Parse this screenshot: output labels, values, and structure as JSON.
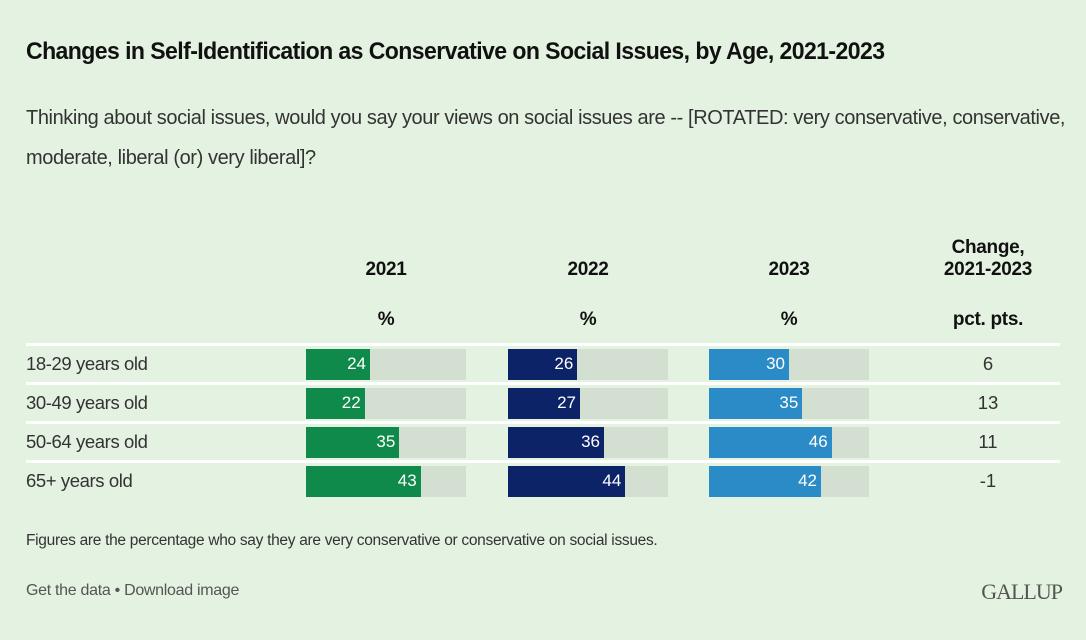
{
  "title": "Changes in Self-Identification as Conservative on Social Issues, by Age, 2021-2023",
  "subtitle": "Thinking about social issues, would you say your views on social issues are -- [ROTATED: very conservative, conservative, moderate, liberal (or) very liberal]?",
  "note": "Figures are the percentage who say they are very conservative or conservative on social issues.",
  "footer": {
    "get_data": "Get the data",
    "bullet": " • ",
    "download": "Download image",
    "logo": "GALLUP"
  },
  "colors": {
    "2021": "#0f8a4a",
    "2022": "#0c2368",
    "2023": "#2a8bc6",
    "track": "#d3e0d1",
    "background": "#e4f2e1"
  },
  "chart_data": {
    "type": "table",
    "title": "Changes in Self-Identification as Conservative on Social Issues, by Age, 2021-2023",
    "columns": [
      {
        "key": "2021",
        "label": "2021",
        "unit": "%"
      },
      {
        "key": "2022",
        "label": "2022",
        "unit": "%"
      },
      {
        "key": "2023",
        "label": "2023",
        "unit": "%"
      },
      {
        "key": "change",
        "label_line1": "Change,",
        "label_line2": "2021-2023",
        "unit": "pct. pts."
      }
    ],
    "bar_scale_max": 60,
    "categories": [
      "18-29 years old",
      "30-49 years old",
      "50-64 years old",
      "65+ years old"
    ],
    "series": [
      {
        "name": "2021",
        "values": [
          24,
          22,
          35,
          43
        ]
      },
      {
        "name": "2022",
        "values": [
          26,
          27,
          36,
          44
        ]
      },
      {
        "name": "2023",
        "values": [
          30,
          35,
          46,
          42
        ]
      }
    ],
    "change": [
      "6",
      "13",
      "11",
      "-1"
    ]
  }
}
